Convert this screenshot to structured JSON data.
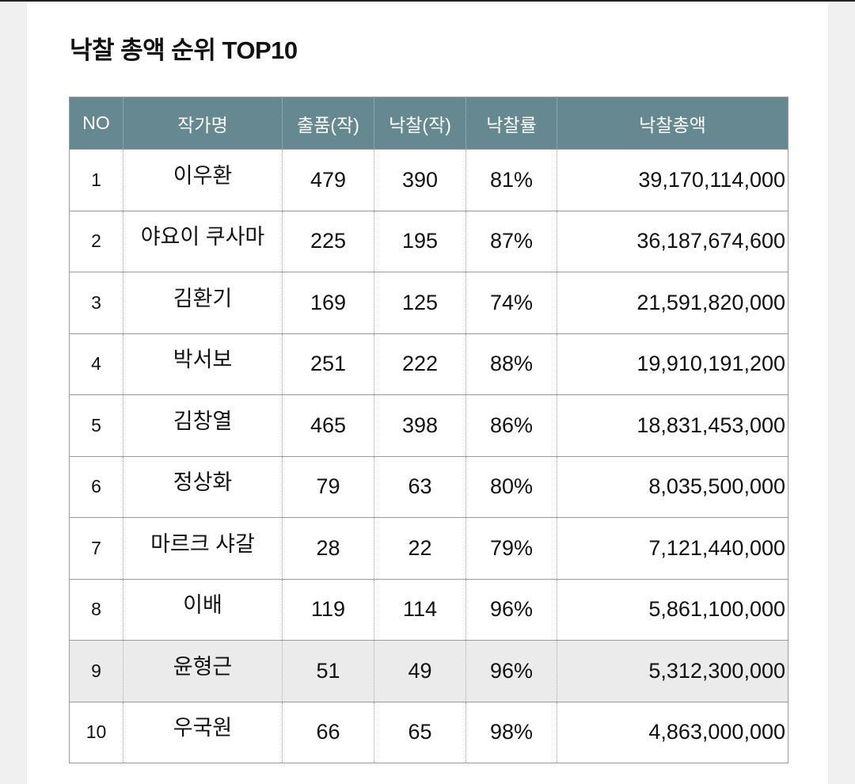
{
  "title": "낙찰 총액 순위 TOP10",
  "table": {
    "headers": [
      "NO",
      "작가명",
      "출품(작)",
      "낙찰(작)",
      "낙찰률",
      "낙찰총액"
    ],
    "rows": [
      {
        "no": "1",
        "artist": "이우환",
        "entries": "479",
        "sold": "390",
        "rate": "81%",
        "total": "39,170,114,000"
      },
      {
        "no": "2",
        "artist": "야요이 쿠사마",
        "entries": "225",
        "sold": "195",
        "rate": "87%",
        "total": "36,187,674,600"
      },
      {
        "no": "3",
        "artist": "김환기",
        "entries": "169",
        "sold": "125",
        "rate": "74%",
        "total": "21,591,820,000"
      },
      {
        "no": "4",
        "artist": "박서보",
        "entries": "251",
        "sold": "222",
        "rate": "88%",
        "total": "19,910,191,200"
      },
      {
        "no": "5",
        "artist": "김창열",
        "entries": "465",
        "sold": "398",
        "rate": "86%",
        "total": "18,831,453,000"
      },
      {
        "no": "6",
        "artist": "정상화",
        "entries": "79",
        "sold": "63",
        "rate": "80%",
        "total": "8,035,500,000"
      },
      {
        "no": "7",
        "artist": "마르크 샤갈",
        "entries": "28",
        "sold": "22",
        "rate": "79%",
        "total": "7,121,440,000"
      },
      {
        "no": "8",
        "artist": "이배",
        "entries": "119",
        "sold": "114",
        "rate": "96%",
        "total": "5,861,100,000"
      },
      {
        "no": "9",
        "artist": "윤형근",
        "entries": "51",
        "sold": "49",
        "rate": "96%",
        "total": "5,312,300,000"
      },
      {
        "no": "10",
        "artist": "우국원",
        "entries": "66",
        "sold": "65",
        "rate": "98%",
        "total": "4,863,000,000"
      }
    ],
    "highlighted_row": "9"
  },
  "colors": {
    "header_background": "#668891",
    "header_text": "#ffffff",
    "highlight_row": "#ebebeb"
  }
}
